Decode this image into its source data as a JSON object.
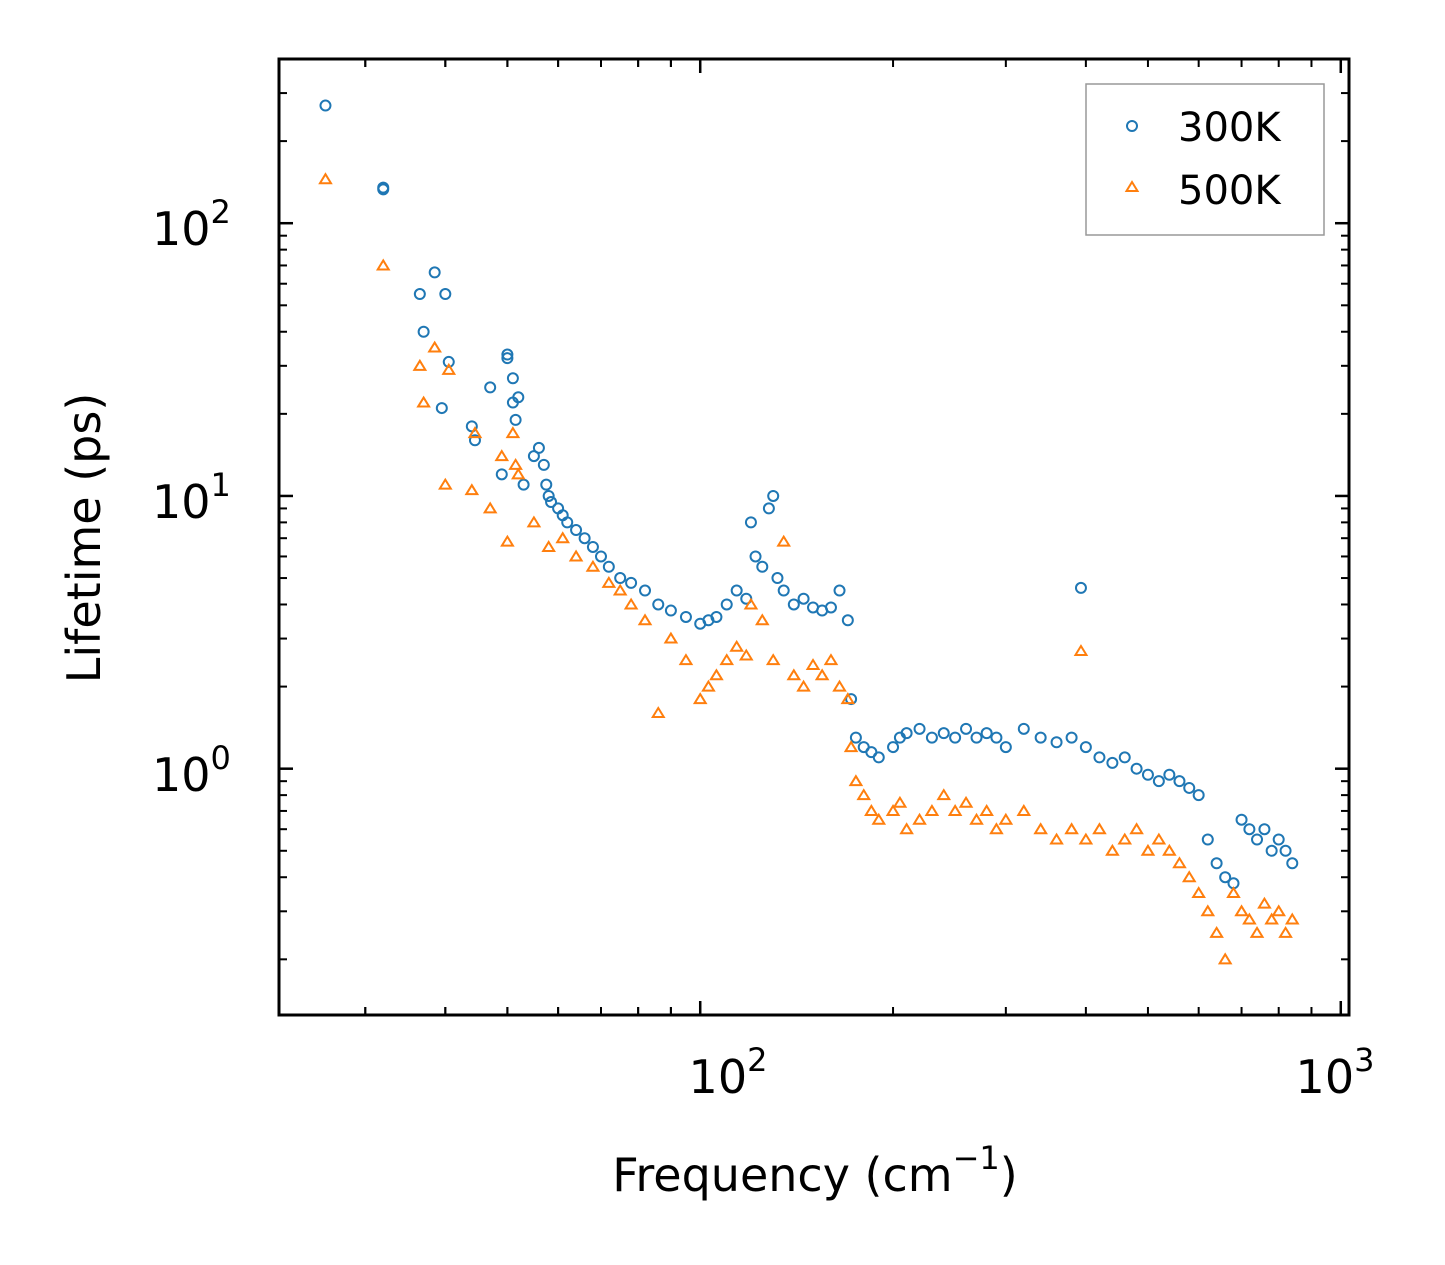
{
  "chart_data": {
    "type": "scatter",
    "xscale": "log",
    "yscale": "log",
    "xlim": [
      22.0,
      1030.0
    ],
    "ylim": [
      0.125,
      400.0
    ],
    "xlabel": "Frequency (cm",
    "xlabel_sup": "−1",
    "xlabel_tail": ")",
    "ylabel": "Lifetime (ps)",
    "xticks": [
      {
        "base": "10",
        "exp": "2",
        "value": 100
      },
      {
        "base": "10",
        "exp": "3",
        "value": 1000
      }
    ],
    "yticks": [
      {
        "base": "10",
        "exp": "0",
        "value": 1
      },
      {
        "base": "10",
        "exp": "1",
        "value": 10
      },
      {
        "base": "10",
        "exp": "2",
        "value": 100
      }
    ],
    "legend_position": "top-right",
    "series": [
      {
        "name": "300K",
        "marker": "circle",
        "color": "#1f77b4",
        "x": [
          26.0,
          32.0,
          32.0,
          36.5,
          37.0,
          38.5,
          39.5,
          40.0,
          40.5,
          44.0,
          44.5,
          47.0,
          49.0,
          50.0,
          50.0,
          51.0,
          51.0,
          51.5,
          52.0,
          53.0,
          55.0,
          56.0,
          57.0,
          57.5,
          58.0,
          58.5,
          60.0,
          61.0,
          62.0,
          64.0,
          66.0,
          68.0,
          70.0,
          72.0,
          75.0,
          78.0,
          82.0,
          86.0,
          90.0,
          95.0,
          100.0,
          103.0,
          106.0,
          110.0,
          114.0,
          118.0,
          120.0,
          122.0,
          125.0,
          128.0,
          130.0,
          132.0,
          135.0,
          140.0,
          145.0,
          150.0,
          155.0,
          160.0,
          165.0,
          170.0,
          172.0,
          175.0,
          180.0,
          185.0,
          190.0,
          200.0,
          205.0,
          210.0,
          220.0,
          230.0,
          240.0,
          250.0,
          260.0,
          270.0,
          280.0,
          290.0,
          300.0,
          320.0,
          340.0,
          360.0,
          380.0,
          393.0,
          400.0,
          420.0,
          440.0,
          460.0,
          480.0,
          500.0,
          520.0,
          540.0,
          560.0,
          580.0,
          600.0,
          620.0,
          640.0,
          660.0,
          680.0,
          700.0,
          720.0,
          740.0,
          760.0,
          780.0,
          800.0,
          820.0,
          840.0
        ],
        "y": [
          270.0,
          135.0,
          133.0,
          55.0,
          40.0,
          66.0,
          21.0,
          55.0,
          31.0,
          18.0,
          16.0,
          25.0,
          12.0,
          33.0,
          32.0,
          27.0,
          22.0,
          19.0,
          23.0,
          11.0,
          14.0,
          15.0,
          13.0,
          11.0,
          10.0,
          9.5,
          9.0,
          8.5,
          8.0,
          7.5,
          7.0,
          6.5,
          6.0,
          5.5,
          5.0,
          4.8,
          4.5,
          4.0,
          3.8,
          3.6,
          3.4,
          3.5,
          3.6,
          4.0,
          4.5,
          4.2,
          8.0,
          6.0,
          5.5,
          9.0,
          10.0,
          5.0,
          4.5,
          4.0,
          4.2,
          3.9,
          3.8,
          3.9,
          4.5,
          3.5,
          1.8,
          1.3,
          1.2,
          1.15,
          1.1,
          1.2,
          1.3,
          1.35,
          1.4,
          1.3,
          1.35,
          1.3,
          1.4,
          1.3,
          1.35,
          1.3,
          1.2,
          1.4,
          1.3,
          1.25,
          1.3,
          4.6,
          1.2,
          1.1,
          1.05,
          1.1,
          1.0,
          0.95,
          0.9,
          0.95,
          0.9,
          0.85,
          0.8,
          0.55,
          0.45,
          0.4,
          0.38,
          0.65,
          0.6,
          0.55,
          0.6,
          0.5,
          0.55,
          0.5,
          0.45
        ]
      },
      {
        "name": "500K",
        "marker": "triangle",
        "color": "#ff7f0e",
        "x": [
          26.0,
          32.0,
          36.5,
          37.0,
          38.5,
          40.0,
          40.5,
          44.0,
          44.5,
          47.0,
          49.0,
          50.0,
          51.0,
          51.5,
          52.0,
          55.0,
          58.0,
          61.0,
          64.0,
          68.0,
          72.0,
          75.0,
          78.0,
          82.0,
          86.0,
          90.0,
          95.0,
          100.0,
          103.0,
          106.0,
          110.0,
          114.0,
          118.0,
          120.0,
          125.0,
          130.0,
          135.0,
          140.0,
          145.0,
          150.0,
          155.0,
          160.0,
          165.0,
          170.0,
          172.0,
          175.0,
          180.0,
          185.0,
          190.0,
          200.0,
          205.0,
          210.0,
          220.0,
          230.0,
          240.0,
          250.0,
          260.0,
          270.0,
          280.0,
          290.0,
          300.0,
          320.0,
          340.0,
          360.0,
          380.0,
          393.0,
          400.0,
          420.0,
          440.0,
          460.0,
          480.0,
          500.0,
          520.0,
          540.0,
          560.0,
          580.0,
          600.0,
          620.0,
          640.0,
          660.0,
          680.0,
          700.0,
          720.0,
          740.0,
          760.0,
          780.0,
          800.0,
          820.0,
          840.0
        ],
        "y": [
          145.0,
          70.0,
          30.0,
          22.0,
          35.0,
          11.0,
          29.0,
          10.5,
          17.0,
          9.0,
          14.0,
          6.8,
          17.0,
          13.0,
          12.0,
          8.0,
          6.5,
          7.0,
          6.0,
          5.5,
          4.8,
          4.5,
          4.0,
          3.5,
          1.6,
          3.0,
          2.5,
          1.8,
          2.0,
          2.2,
          2.5,
          2.8,
          2.6,
          4.0,
          3.5,
          2.5,
          6.8,
          2.2,
          2.0,
          2.4,
          2.2,
          2.5,
          2.0,
          1.8,
          1.2,
          0.9,
          0.8,
          0.7,
          0.65,
          0.7,
          0.75,
          0.6,
          0.65,
          0.7,
          0.8,
          0.7,
          0.75,
          0.65,
          0.7,
          0.6,
          0.65,
          0.7,
          0.6,
          0.55,
          0.6,
          2.7,
          0.55,
          0.6,
          0.5,
          0.55,
          0.6,
          0.5,
          0.55,
          0.5,
          0.45,
          0.4,
          0.35,
          0.3,
          0.25,
          0.2,
          0.35,
          0.3,
          0.28,
          0.25,
          0.32,
          0.28,
          0.3,
          0.25,
          0.28
        ]
      }
    ]
  }
}
